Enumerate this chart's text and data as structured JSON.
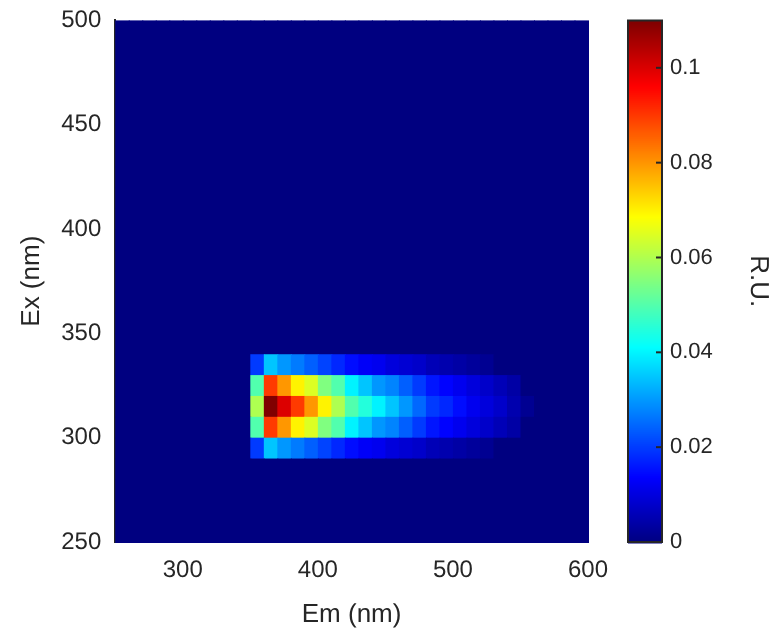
{
  "chart_data": {
    "type": "heatmap",
    "xlabel": "Em (nm)",
    "ylabel": "Ex (nm)",
    "clabel": "R.U.",
    "x": [
      255,
      265,
      275,
      285,
      295,
      305,
      315,
      325,
      335,
      345,
      355,
      365,
      375,
      385,
      395,
      405,
      415,
      425,
      435,
      445,
      455,
      465,
      475,
      485,
      495,
      505,
      515,
      525,
      535,
      545,
      555,
      565,
      575,
      585,
      595
    ],
    "y": [
      495,
      485,
      475,
      465,
      455,
      445,
      435,
      425,
      415,
      405,
      395,
      385,
      375,
      365,
      355,
      345,
      335,
      325,
      315,
      305,
      295,
      285,
      275,
      265,
      255
    ],
    "xlim": [
      250,
      600
    ],
    "ylim": [
      250,
      500
    ],
    "xticks": [
      300,
      400,
      500,
      600
    ],
    "yticks": [
      250,
      300,
      350,
      400,
      450,
      500
    ],
    "clim": [
      0,
      0.11
    ],
    "cticks": [
      0,
      0.02,
      0.04,
      0.06,
      0.08,
      0.1
    ],
    "cells": [
      [
        0,
        0,
        0,
        0,
        0,
        0,
        0,
        0,
        0,
        0,
        0,
        0,
        0,
        0,
        0,
        0,
        0,
        0,
        0,
        0,
        0,
        0,
        0,
        0,
        0,
        0,
        0,
        0,
        0,
        0,
        0,
        0,
        0,
        0,
        0
      ],
      [
        0,
        0,
        0,
        0,
        0,
        0,
        0,
        0,
        0,
        0,
        0,
        0,
        0,
        0,
        0,
        0,
        0,
        0,
        0,
        0,
        0,
        0,
        0,
        0,
        0,
        0,
        0,
        0,
        0,
        0,
        0,
        0,
        0,
        0,
        0
      ],
      [
        0,
        0,
        0,
        0,
        0,
        0,
        0,
        0,
        0,
        0,
        0,
        0,
        0,
        0,
        0,
        0,
        0,
        0,
        0,
        0,
        0,
        0,
        0,
        0,
        0,
        0,
        0,
        0,
        0,
        0,
        0,
        0,
        0,
        0,
        0
      ],
      [
        0,
        0,
        0,
        0,
        0,
        0,
        0,
        0,
        0,
        0,
        0,
        0,
        0,
        0,
        0,
        0,
        0,
        0,
        0,
        0,
        0,
        0,
        0,
        0,
        0,
        0,
        0,
        0,
        0,
        0,
        0,
        0,
        0,
        0,
        0
      ],
      [
        0,
        0,
        0,
        0,
        0,
        0,
        0,
        0,
        0,
        0,
        0,
        0,
        0,
        0,
        0,
        0,
        0,
        0,
        0,
        0,
        0,
        0,
        0,
        0,
        0,
        0,
        0,
        0,
        0,
        0,
        0,
        0,
        0,
        0,
        0
      ],
      [
        0,
        0,
        0,
        0,
        0,
        0,
        0,
        0,
        0,
        0,
        0,
        0,
        0,
        0,
        0,
        0,
        0,
        0,
        0,
        0,
        0,
        0,
        0,
        0,
        0,
        0,
        0,
        0,
        0,
        0,
        0,
        0,
        0,
        0,
        0
      ],
      [
        0,
        0,
        0,
        0,
        0,
        0,
        0,
        0,
        0,
        0,
        0,
        0,
        0,
        0,
        0,
        0,
        0,
        0,
        0,
        0,
        0,
        0,
        0,
        0,
        0,
        0,
        0,
        0,
        0,
        0,
        0,
        0,
        0,
        0,
        0
      ],
      [
        0,
        0,
        0,
        0,
        0,
        0,
        0,
        0,
        0,
        0,
        0,
        0,
        0,
        0,
        0,
        0,
        0,
        0,
        0,
        0,
        0,
        0,
        0,
        0,
        0,
        0,
        0,
        0,
        0,
        0,
        0,
        0,
        0,
        0,
        0
      ],
      [
        0,
        0,
        0,
        0,
        0,
        0,
        0,
        0,
        0,
        0,
        0,
        0,
        0,
        0,
        0,
        0,
        0,
        0,
        0,
        0,
        0,
        0,
        0,
        0,
        0,
        0,
        0,
        0,
        0,
        0,
        0,
        0,
        0,
        0,
        0
      ],
      [
        0,
        0,
        0,
        0,
        0,
        0,
        0,
        0,
        0,
        0,
        0,
        0,
        0,
        0,
        0,
        0,
        0,
        0,
        0,
        0,
        0,
        0,
        0,
        0,
        0,
        0,
        0,
        0,
        0,
        0,
        0,
        0,
        0,
        0,
        0
      ],
      [
        0,
        0,
        0,
        0,
        0,
        0,
        0,
        0,
        0,
        0,
        0,
        0,
        0,
        0,
        0,
        0,
        0,
        0,
        0,
        0,
        0,
        0,
        0,
        0,
        0,
        0,
        0,
        0,
        0,
        0,
        0,
        0,
        0,
        0,
        0
      ],
      [
        0,
        0,
        0,
        0,
        0,
        0,
        0,
        0,
        0,
        0,
        0,
        0,
        0,
        0,
        0,
        0,
        0,
        0,
        0,
        0,
        0,
        0,
        0,
        0,
        0,
        0,
        0,
        0,
        0,
        0,
        0,
        0,
        0,
        0,
        0
      ],
      [
        0,
        0,
        0,
        0,
        0,
        0,
        0,
        0,
        0,
        0,
        0,
        0,
        0,
        0,
        0,
        0,
        0,
        0,
        0,
        0,
        0,
        0,
        0,
        0,
        0,
        0,
        0,
        0,
        0,
        0,
        0,
        0,
        0,
        0,
        0
      ],
      [
        0,
        0,
        0,
        0,
        0,
        0,
        0,
        0,
        0,
        0,
        0,
        0,
        0,
        0,
        0,
        0,
        0,
        0,
        0,
        0,
        0,
        0,
        0,
        0,
        0,
        0,
        0,
        0,
        0,
        0,
        0,
        0,
        0,
        0,
        0
      ],
      [
        0,
        0,
        0,
        0,
        0,
        0,
        0,
        0,
        0,
        0,
        0,
        0,
        0,
        0,
        0,
        0,
        0,
        0,
        0,
        0,
        0,
        0,
        0,
        0,
        0,
        0,
        0,
        0,
        0,
        0,
        0,
        0,
        0,
        0,
        0
      ],
      [
        0,
        0,
        0,
        0,
        0,
        0,
        0,
        0,
        0,
        0,
        0,
        0,
        0,
        0,
        0,
        0,
        0,
        0,
        0,
        0,
        0,
        0,
        0,
        0,
        0,
        0,
        0,
        0,
        0,
        0,
        0,
        0,
        0,
        0,
        0
      ],
      [
        0,
        0,
        0,
        0,
        0,
        0,
        0,
        0,
        0,
        0,
        0.02,
        0.035,
        0.03,
        0.027,
        0.024,
        0.021,
        0.018,
        0.015,
        0.013,
        0.012,
        0.01,
        0.009,
        0.008,
        0.006,
        0.005,
        0.004,
        0.003,
        0.002,
        0,
        0,
        0,
        0,
        0,
        0,
        0
      ],
      [
        0,
        0,
        0,
        0,
        0,
        0,
        0,
        0,
        0,
        0,
        0.05,
        0.09,
        0.08,
        0.07,
        0.065,
        0.055,
        0.05,
        0.04,
        0.035,
        0.03,
        0.028,
        0.024,
        0.02,
        0.016,
        0.014,
        0.012,
        0.01,
        0.008,
        0.006,
        0.004,
        0,
        0,
        0,
        0,
        0
      ],
      [
        0,
        0,
        0,
        0,
        0,
        0,
        0,
        0,
        0,
        0,
        0.06,
        0.11,
        0.1,
        0.09,
        0.08,
        0.07,
        0.06,
        0.05,
        0.045,
        0.04,
        0.035,
        0.03,
        0.025,
        0.02,
        0.018,
        0.015,
        0.012,
        0.01,
        0.008,
        0.005,
        0.002,
        0,
        0,
        0,
        0
      ],
      [
        0,
        0,
        0,
        0,
        0,
        0,
        0,
        0,
        0,
        0,
        0.05,
        0.09,
        0.08,
        0.07,
        0.065,
        0.055,
        0.05,
        0.04,
        0.035,
        0.03,
        0.028,
        0.024,
        0.02,
        0.016,
        0.014,
        0.012,
        0.01,
        0.008,
        0.006,
        0.004,
        0,
        0,
        0,
        0,
        0
      ],
      [
        0,
        0,
        0,
        0,
        0,
        0,
        0,
        0,
        0,
        0,
        0.02,
        0.035,
        0.03,
        0.027,
        0.024,
        0.021,
        0.018,
        0.015,
        0.013,
        0.012,
        0.01,
        0.009,
        0.008,
        0.006,
        0.005,
        0.004,
        0.003,
        0.002,
        0,
        0,
        0,
        0,
        0,
        0,
        0
      ],
      [
        0,
        0,
        0,
        0,
        0,
        0,
        0,
        0,
        0,
        0,
        0,
        0,
        0,
        0,
        0,
        0,
        0,
        0,
        0,
        0,
        0,
        0,
        0,
        0,
        0,
        0,
        0,
        0,
        0,
        0,
        0,
        0,
        0,
        0,
        0
      ],
      [
        0,
        0,
        0,
        0,
        0,
        0,
        0,
        0,
        0,
        0,
        0,
        0,
        0,
        0,
        0,
        0,
        0,
        0,
        0,
        0,
        0,
        0,
        0,
        0,
        0,
        0,
        0,
        0,
        0,
        0,
        0,
        0,
        0,
        0,
        0
      ],
      [
        0,
        0,
        0,
        0,
        0,
        0,
        0,
        0,
        0,
        0,
        0,
        0,
        0,
        0,
        0,
        0,
        0,
        0,
        0,
        0,
        0,
        0,
        0,
        0,
        0,
        0,
        0,
        0,
        0,
        0,
        0,
        0,
        0,
        0,
        0
      ],
      [
        0,
        0,
        0,
        0,
        0,
        0,
        0,
        0,
        0,
        0,
        0,
        0,
        0,
        0,
        0,
        0,
        0,
        0,
        0,
        0,
        0,
        0,
        0,
        0,
        0,
        0,
        0,
        0,
        0,
        0,
        0,
        0,
        0,
        0,
        0
      ]
    ]
  }
}
